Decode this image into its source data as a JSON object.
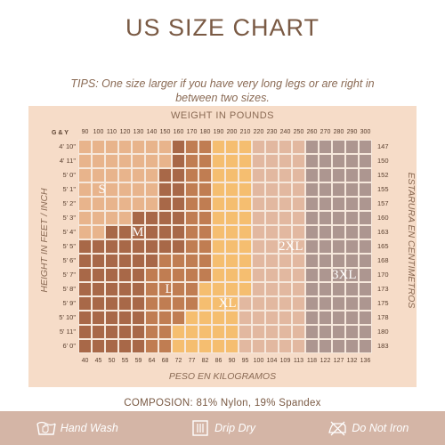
{
  "title": "US SIZE CHART",
  "tips": "TIPS: One size larger if you have very long legs or are right in between two sizes.",
  "chart": {
    "weight_title": "WEIGHT IN POUNDS",
    "corner_label": "G & Y",
    "height_title": "HEIGHT IN FEET / INCH",
    "cm_title": "ESTARURA EN CENTIMETROS",
    "kg_title": "PESO EN KILOGRAMOS",
    "pounds": [
      "90",
      "100",
      "110",
      "120",
      "130",
      "140",
      "150",
      "160",
      "170",
      "180",
      "190",
      "200",
      "210",
      "220",
      "230",
      "240",
      "250",
      "260",
      "270",
      "280",
      "290",
      "300"
    ],
    "kilograms": [
      "40",
      "45",
      "50",
      "55",
      "59",
      "64",
      "68",
      "72",
      "77",
      "82",
      "86",
      "90",
      "95",
      "100",
      "104",
      "109",
      "113",
      "118",
      "122",
      "127",
      "132",
      "136"
    ],
    "heights": [
      "4' 10\"",
      "4' 11\"",
      "5' 0\"",
      "5' 1\"",
      "5' 2\"",
      "5' 3\"",
      "5' 4\"",
      "5' 5\"",
      "5' 6\"",
      "5' 7\"",
      "5' 8\"",
      "5' 9\"",
      "5' 10\"",
      "5' 11\"",
      "6' 0\""
    ],
    "centimeters": [
      "147",
      "150",
      "152",
      "155",
      "157",
      "160",
      "163",
      "165",
      "168",
      "170",
      "173",
      "175",
      "178",
      "180",
      "183"
    ],
    "sizes": [
      {
        "name": "S",
        "color": "#e8b48c"
      },
      {
        "name": "M",
        "color": "#a86848"
      },
      {
        "name": "L",
        "color": "#c07d52"
      },
      {
        "name": "XL",
        "color": "#f5be70"
      },
      {
        "name": "2XL",
        "color": "#e2b8a0"
      },
      {
        "name": "3XL",
        "color": "#ad9690"
      }
    ],
    "boundaries": [
      {
        "S_end": 7,
        "M_end": 8,
        "L_end": 10,
        "XL_end": 13,
        "2XL_end": 17
      },
      {
        "S_end": 7,
        "M_end": 8,
        "L_end": 10,
        "XL_end": 13,
        "2XL_end": 17
      },
      {
        "S_end": 6,
        "M_end": 8,
        "L_end": 10,
        "XL_end": 13,
        "2XL_end": 17
      },
      {
        "S_end": 6,
        "M_end": 8,
        "L_end": 10,
        "XL_end": 13,
        "2XL_end": 17
      },
      {
        "S_end": 6,
        "M_end": 8,
        "L_end": 10,
        "XL_end": 13,
        "2XL_end": 17
      },
      {
        "S_end": 4,
        "M_end": 8,
        "L_end": 10,
        "XL_end": 13,
        "2XL_end": 17
      },
      {
        "S_end": 2,
        "M_end": 8,
        "L_end": 10,
        "XL_end": 13,
        "2XL_end": 17
      },
      {
        "S_end": 0,
        "M_end": 8,
        "L_end": 10,
        "XL_end": 13,
        "2XL_end": 17
      },
      {
        "S_end": 0,
        "M_end": 6,
        "L_end": 10,
        "XL_end": 13,
        "2XL_end": 17
      },
      {
        "S_end": 0,
        "M_end": 5,
        "L_end": 10,
        "XL_end": 13,
        "2XL_end": 17
      },
      {
        "S_end": 0,
        "M_end": 5,
        "L_end": 9,
        "XL_end": 13,
        "2XL_end": 17
      },
      {
        "S_end": 0,
        "M_end": 5,
        "L_end": 9,
        "XL_end": 12,
        "2XL_end": 17
      },
      {
        "S_end": 0,
        "M_end": 5,
        "L_end": 8,
        "XL_end": 12,
        "2XL_end": 17
      },
      {
        "S_end": 0,
        "M_end": 5,
        "L_end": 7,
        "XL_end": 12,
        "2XL_end": 17
      },
      {
        "S_end": 0,
        "M_end": 5,
        "L_end": 7,
        "XL_end": 12,
        "2XL_end": 17
      }
    ],
    "label_rows": {
      "S": 3,
      "M": 6,
      "L": 10,
      "XL": 11,
      "2XL": 7,
      "3XL": 9
    },
    "label_cols": {
      "S": 1.5,
      "M": 4,
      "L": 6.5,
      "XL": 10.5,
      "2XL": 15,
      "3XL": 19
    }
  },
  "composition": "COMPOSION: 81% Nylon, 19% Spandex",
  "care": [
    {
      "icon": "hand-wash-icon",
      "label": "Hand Wash"
    },
    {
      "icon": "drip-dry-icon",
      "label": "Drip Dry"
    },
    {
      "icon": "do-not-iron-icon",
      "label": "Do Not Iron"
    }
  ]
}
